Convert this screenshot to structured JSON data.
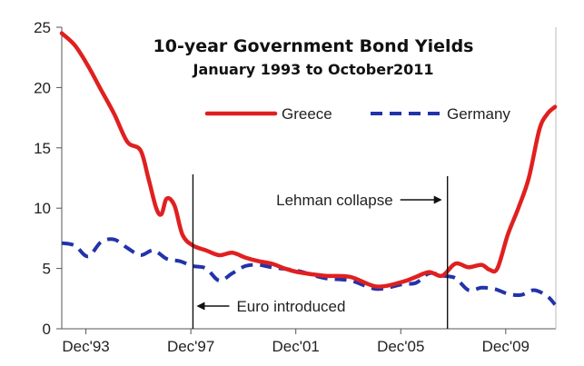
{
  "chart_data": {
    "type": "line",
    "title": "10-year Government Bond Yields",
    "subtitle": "January 1993 to October2011",
    "xlabel": "",
    "ylabel": "",
    "xlim": [
      1993.0,
      2011.83
    ],
    "ylim": [
      0,
      25
    ],
    "yticks": [
      0,
      5,
      10,
      15,
      20,
      25
    ],
    "xticks": [
      {
        "label": "Dec'93",
        "x": 1993.92
      },
      {
        "label": "Dec'97",
        "x": 1997.92
      },
      {
        "label": "Dec'01",
        "x": 2001.92
      },
      {
        "label": "Dec'05",
        "x": 2005.92
      },
      {
        "label": "Dec'09",
        "x": 2009.92
      }
    ],
    "grid": false,
    "legend": "top-right",
    "series": [
      {
        "name": "Greece",
        "color": "#e02020",
        "style": "solid",
        "x": [
          1993.0,
          1993.5,
          1994.0,
          1994.5,
          1995.0,
          1995.5,
          1996.0,
          1996.3,
          1996.6,
          1996.8,
          1997.0,
          1997.3,
          1997.6,
          1998.0,
          1998.5,
          1999.0,
          1999.5,
          2000.0,
          2000.5,
          2001.0,
          2001.5,
          2002.0,
          2003.0,
          2004.0,
          2005.0,
          2006.0,
          2006.5,
          2007.0,
          2007.5,
          2008.0,
          2008.5,
          2009.0,
          2009.3,
          2009.6,
          2010.0,
          2010.4,
          2010.8,
          2011.2,
          2011.5,
          2011.8
        ],
        "values": [
          24.5,
          23.5,
          21.8,
          19.8,
          17.8,
          15.5,
          14.8,
          12.5,
          10.0,
          9.5,
          10.8,
          10.2,
          7.8,
          6.9,
          6.5,
          6.1,
          6.3,
          5.9,
          5.6,
          5.4,
          5.0,
          4.7,
          4.4,
          4.3,
          3.5,
          3.9,
          4.3,
          4.7,
          4.4,
          5.4,
          5.1,
          5.3,
          4.9,
          5.0,
          7.8,
          10.0,
          12.5,
          16.5,
          17.8,
          18.4
        ]
      },
      {
        "name": "Germany",
        "color": "#2233aa",
        "style": "dashed",
        "x": [
          1993.0,
          1993.5,
          1994.0,
          1994.5,
          1995.0,
          1995.5,
          1996.0,
          1996.5,
          1997.0,
          1997.5,
          1998.0,
          1998.5,
          1999.0,
          1999.5,
          2000.0,
          2000.5,
          2001.0,
          2002.0,
          2003.0,
          2004.0,
          2005.0,
          2006.0,
          2006.5,
          2007.0,
          2007.5,
          2008.0,
          2008.5,
          2009.0,
          2009.5,
          2010.0,
          2010.5,
          2011.0,
          2011.5,
          2011.8
        ],
        "values": [
          7.1,
          6.9,
          6.0,
          7.2,
          7.4,
          6.7,
          6.1,
          6.5,
          5.8,
          5.6,
          5.2,
          5.0,
          4.0,
          4.6,
          5.2,
          5.3,
          5.1,
          4.8,
          4.2,
          4.0,
          3.3,
          3.7,
          3.8,
          4.6,
          4.4,
          4.2,
          3.2,
          3.4,
          3.3,
          2.9,
          2.8,
          3.2,
          2.7,
          2.0
        ]
      }
    ],
    "annotations": [
      {
        "text": "Euro introduced",
        "x": 1998.0,
        "arrow": "left"
      },
      {
        "text": "Lehman collapse",
        "x": 2007.7,
        "arrow": "right"
      }
    ]
  }
}
